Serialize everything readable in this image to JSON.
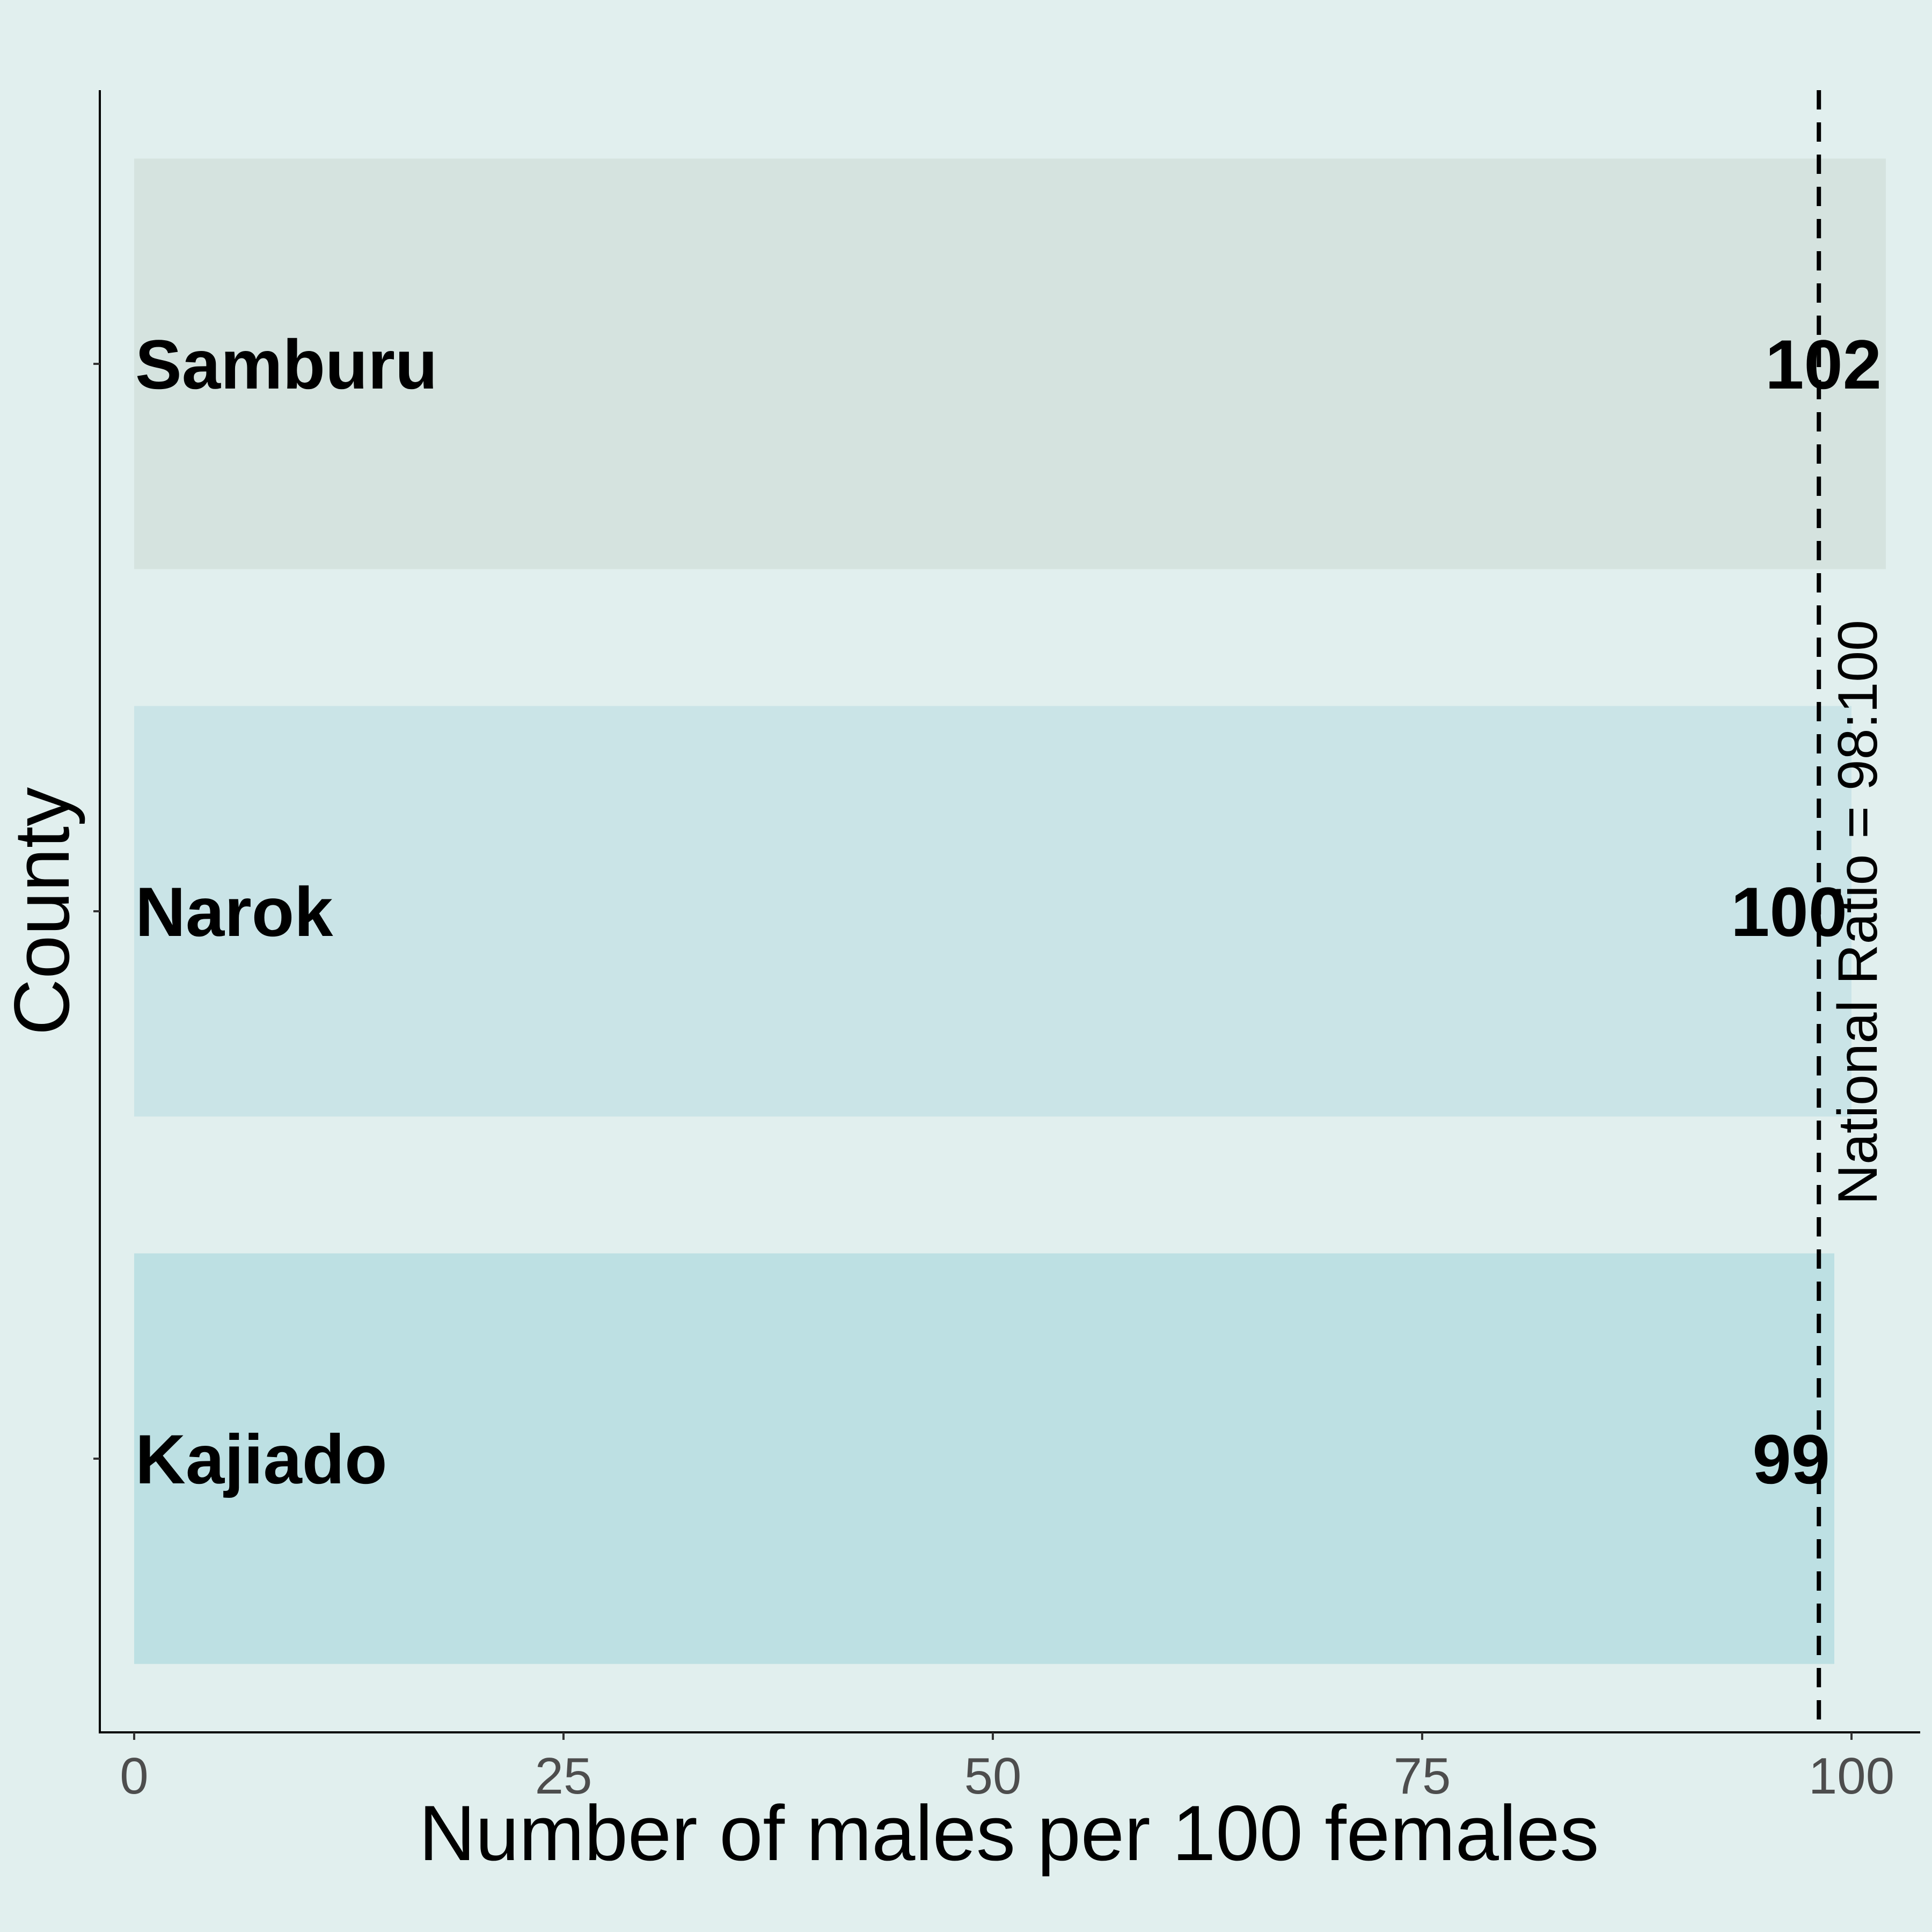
{
  "chart_data": {
    "type": "bar",
    "orientation": "horizontal",
    "title": "",
    "xlabel": "Number of males per 100 females",
    "ylabel": "County",
    "categories": [
      "Kajiado",
      "Narok",
      "Samburu"
    ],
    "values": [
      99,
      100,
      102
    ],
    "value_labels": [
      "99",
      "100",
      "102"
    ],
    "bar_colors": [
      "#bde0e3",
      "#cae4e7",
      "#d5e3df"
    ],
    "x_ticks": [
      0,
      25,
      50,
      75,
      100
    ],
    "x_tick_labels": [
      "0",
      "25",
      "50",
      "75",
      "100"
    ],
    "xlim": [
      -2,
      104
    ],
    "reference_line": {
      "value": 98.1,
      "style": "dashed",
      "label": "National Ratio = 98:100"
    },
    "grid": false,
    "legend": "none",
    "background_color": "#e1efee"
  }
}
